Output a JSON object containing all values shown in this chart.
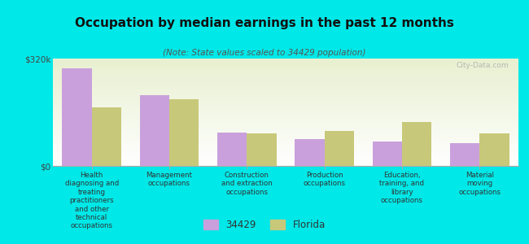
{
  "title": "Occupation by median earnings in the past 12 months",
  "subtitle": "(Note: State values scaled to 34429 population)",
  "background_color": "#00e8e8",
  "plot_bg_top": "#e8f0d0",
  "plot_bg_bottom": "#ffffff",
  "ylim": [
    0,
    320000
  ],
  "yticks": [
    0,
    320000
  ],
  "yticklabels": [
    "$0",
    "$320k"
  ],
  "categories": [
    "Health\ndiagnosing and\ntreating\npractitioners\nand other\ntechnical\noccupations",
    "Management\noccupations",
    "Construction\nand extraction\noccupations",
    "Production\noccupations",
    "Education,\ntraining, and\nlibrary\noccupations",
    "Material\nmoving\noccupations"
  ],
  "values_34429": [
    290000,
    210000,
    100000,
    80000,
    72000,
    68000
  ],
  "values_florida": [
    175000,
    200000,
    97000,
    105000,
    130000,
    97000
  ],
  "color_34429": "#c9a0dc",
  "color_florida": "#c8c87a",
  "legend_label_1": "34429",
  "legend_label_2": "Florida",
  "bar_width": 0.38,
  "watermark": "City-Data.com"
}
